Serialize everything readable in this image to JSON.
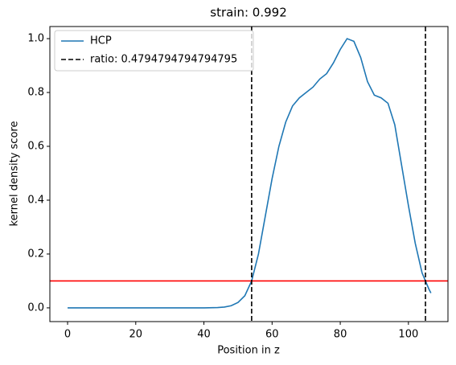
{
  "chart_data": {
    "type": "line",
    "title": "strain: 0.992",
    "x_label": "Position in z",
    "y_label": "kernel density score",
    "x": [
      0,
      10,
      20,
      30,
      40,
      44,
      46,
      48,
      50,
      52,
      54,
      56,
      58,
      60,
      62,
      64,
      66,
      68,
      70,
      72,
      74,
      76,
      78,
      80,
      82,
      84,
      86,
      88,
      90,
      92,
      94,
      96,
      98,
      100,
      102,
      104,
      106,
      106.6
    ],
    "series": [
      {
        "name": "HCP",
        "color": "#1f77b4",
        "values": [
          0,
          0,
          0,
          0,
          0,
          0.001,
          0.003,
          0.008,
          0.02,
          0.045,
          0.1,
          0.2,
          0.34,
          0.48,
          0.6,
          0.69,
          0.75,
          0.78,
          0.8,
          0.82,
          0.85,
          0.87,
          0.91,
          0.96,
          1.0,
          0.99,
          0.93,
          0.84,
          0.79,
          0.78,
          0.76,
          0.68,
          0.53,
          0.38,
          0.24,
          0.13,
          0.07,
          0.055
        ]
      }
    ],
    "vlines": {
      "name": "ratio: 0.4794794794794795",
      "color": "#000000",
      "values": [
        54.0,
        105.0
      ]
    },
    "hlines": {
      "color": "#ff0000",
      "values": [
        0.1
      ]
    },
    "xlim": [
      -5.2,
      111.6
    ],
    "ylim": [
      -0.051,
      1.045
    ],
    "xticks": [
      0,
      20,
      40,
      60,
      80,
      100
    ],
    "yticks": [
      {
        "value": 0,
        "label": "0.0"
      },
      {
        "value": 0.2,
        "label": "0.2"
      },
      {
        "value": 0.4,
        "label": "0.4"
      },
      {
        "value": 0.6,
        "label": "0.6"
      },
      {
        "value": 0.8,
        "label": "0.8"
      },
      {
        "value": 1.0,
        "label": "1.0"
      }
    ],
    "legend": "upper left"
  }
}
